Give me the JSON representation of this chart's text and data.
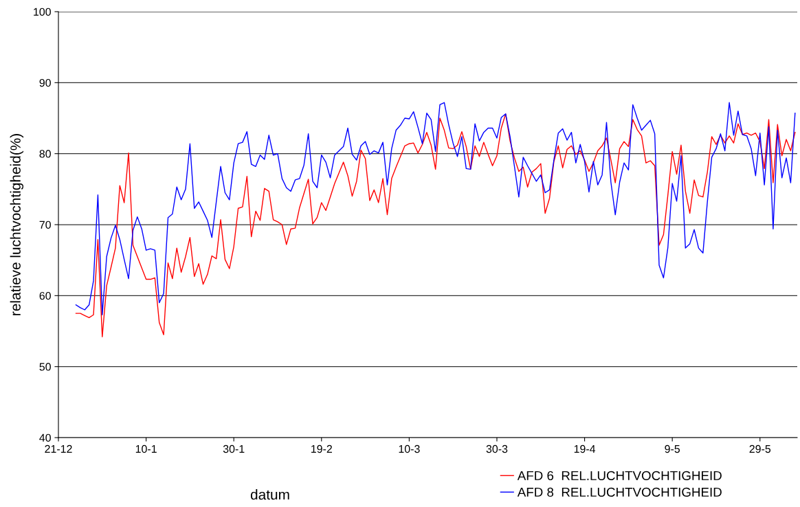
{
  "chart_data": {
    "type": "line",
    "xlabel": "datum",
    "ylabel": "relatieve luchtvochtigheid(%)",
    "categories": [
      "21-12",
      null,
      null,
      null,
      null,
      null,
      null,
      null,
      null,
      null,
      null,
      null,
      null,
      null,
      null,
      null,
      null,
      null,
      null,
      null,
      "10-1",
      null,
      null,
      null,
      null,
      null,
      null,
      null,
      null,
      null,
      null,
      null,
      null,
      null,
      null,
      null,
      null,
      null,
      null,
      null,
      "30-1",
      null,
      null,
      null,
      null,
      null,
      null,
      null,
      null,
      null,
      null,
      null,
      null,
      null,
      null,
      null,
      null,
      null,
      null,
      null,
      "19-2",
      null,
      null,
      null,
      null,
      null,
      null,
      null,
      null,
      null,
      null,
      null,
      null,
      null,
      null,
      null,
      null,
      null,
      null,
      null,
      "10-3",
      null,
      null,
      null,
      null,
      null,
      null,
      null,
      null,
      null,
      null,
      null,
      null,
      null,
      null,
      null,
      null,
      null,
      null,
      null,
      "30-3",
      null,
      null,
      null,
      null,
      null,
      null,
      null,
      null,
      null,
      null,
      null,
      null,
      null,
      null,
      null,
      null,
      null,
      null,
      null,
      "19-4",
      null,
      null,
      null,
      null,
      null,
      null,
      null,
      null,
      null,
      null,
      null,
      null,
      null,
      null,
      null,
      null,
      null,
      null,
      null,
      "9-5",
      null,
      null,
      null,
      null,
      null,
      null,
      null,
      null,
      null,
      null,
      null,
      null,
      null,
      null,
      null,
      null,
      null,
      null,
      null,
      "29-5",
      null,
      null,
      null,
      null,
      null,
      null,
      null,
      null
    ],
    "series": [
      {
        "name": "AFD 6  REL.LUCHTVOCHTIGHEID",
        "color": "#ff0000",
        "values": [
          null,
          null,
          null,
          null,
          57.5,
          57.5,
          57.2,
          56.9,
          57.3,
          67.9,
          54.2,
          61.4,
          64.0,
          66.7,
          75.5,
          73.1,
          80.1,
          67.1,
          65.5,
          63.9,
          62.3,
          62.3,
          62.5,
          56.2,
          54.5,
          64.6,
          62.4,
          66.7,
          63.3,
          65.5,
          68.2,
          62.7,
          64.5,
          61.6,
          63.0,
          65.6,
          65.2,
          70.7,
          65.1,
          63.8,
          66.9,
          72.3,
          72.5,
          76.8,
          68.3,
          71.9,
          70.6,
          75.1,
          74.7,
          70.7,
          70.4,
          70.0,
          67.2,
          69.4,
          69.5,
          72.4,
          74.4,
          76.4,
          70.1,
          71.0,
          73.1,
          72.0,
          73.9,
          75.8,
          77.3,
          78.8,
          76.9,
          74.0,
          76.1,
          80.5,
          79.3,
          73.4,
          74.9,
          73.1,
          76.5,
          71.4,
          76.5,
          78.1,
          79.6,
          81.1,
          81.4,
          81.5,
          80.1,
          81.3,
          83.0,
          81.2,
          77.8,
          85.0,
          83.3,
          80.8,
          80.7,
          81.2,
          83.1,
          81.0,
          77.8,
          81.1,
          79.6,
          81.6,
          79.9,
          78.3,
          79.7,
          83.6,
          85.6,
          81.8,
          79.4,
          77.5,
          78.1,
          75.3,
          77.4,
          77.9,
          78.6,
          71.6,
          73.7,
          78.9,
          81.1,
          78.0,
          80.6,
          81.1,
          79.9,
          80.4,
          79.1,
          77.5,
          78.7,
          80.4,
          81.1,
          82.2,
          79.1,
          75.9,
          80.7,
          81.7,
          81.0,
          84.8,
          83.4,
          82.5,
          78.7,
          79.0,
          78.3,
          67.1,
          68.6,
          74.2,
          80.3,
          77.1,
          81.2,
          74.7,
          71.6,
          76.3,
          74.1,
          73.9,
          77.4,
          82.4,
          81.3,
          82.6,
          81.5,
          82.5,
          81.5,
          84.2,
          82.7,
          82.9,
          82.6,
          82.9,
          81.7,
          77.9,
          84.8,
          75.9,
          84.1,
          79.7,
          82.0,
          80.4,
          83.0
        ]
      },
      {
        "name": "AFD 8  REL.LUCHTVOCHTIGHEID",
        "color": "#0000ff",
        "values": [
          null,
          null,
          null,
          null,
          58.7,
          58.3,
          58.0,
          58.7,
          62.1,
          74.2,
          57.3,
          65.5,
          68.1,
          69.9,
          67.9,
          65.1,
          62.4,
          69.2,
          71.1,
          69.4,
          66.4,
          66.6,
          66.4,
          59.0,
          60.3,
          71.0,
          71.5,
          75.3,
          73.5,
          75.0,
          81.4,
          72.3,
          73.2,
          71.9,
          70.6,
          68.2,
          73.2,
          78.2,
          74.5,
          73.5,
          78.7,
          81.4,
          81.6,
          83.1,
          78.5,
          78.2,
          79.8,
          79.2,
          82.6,
          79.8,
          80.0,
          76.5,
          75.2,
          74.7,
          76.3,
          76.5,
          78.4,
          82.8,
          76.1,
          75.2,
          79.8,
          78.8,
          76.6,
          79.8,
          80.4,
          81.0,
          83.6,
          79.9,
          79.1,
          81.1,
          81.7,
          79.9,
          80.4,
          80.1,
          81.6,
          75.6,
          80.7,
          83.3,
          84.0,
          85.0,
          84.9,
          85.9,
          83.7,
          81.4,
          85.7,
          84.8,
          80.3,
          86.9,
          87.2,
          84.1,
          81.5,
          79.6,
          82.4,
          77.9,
          77.8,
          84.2,
          81.8,
          83.0,
          83.6,
          83.6,
          82.2,
          85.1,
          85.6,
          82.4,
          78.2,
          73.9,
          79.5,
          78.3,
          77.2,
          76.1,
          77.0,
          74.5,
          74.9,
          79.1,
          82.9,
          83.5,
          81.9,
          83.0,
          78.7,
          81.3,
          78.9,
          74.6,
          78.9,
          75.6,
          77.0,
          84.4,
          76.0,
          71.4,
          76.0,
          78.7,
          77.7,
          86.9,
          85.0,
          83.3,
          84.0,
          84.7,
          82.8,
          64.3,
          62.5,
          66.8,
          75.8,
          73.3,
          79.7,
          66.7,
          67.3,
          69.3,
          66.7,
          66.0,
          73.2,
          79.5,
          80.7,
          82.8,
          80.4,
          87.2,
          82.6,
          86.0,
          82.7,
          82.5,
          80.7,
          76.9,
          82.9,
          75.6,
          83.8,
          69.4,
          83.3,
          76.6,
          79.4,
          75.9,
          85.7
        ]
      }
    ],
    "ylim": [
      40,
      100
    ],
    "yticks": [
      40,
      50,
      60,
      70,
      80,
      90,
      100
    ],
    "grid": "y",
    "legend": "bottom right"
  }
}
